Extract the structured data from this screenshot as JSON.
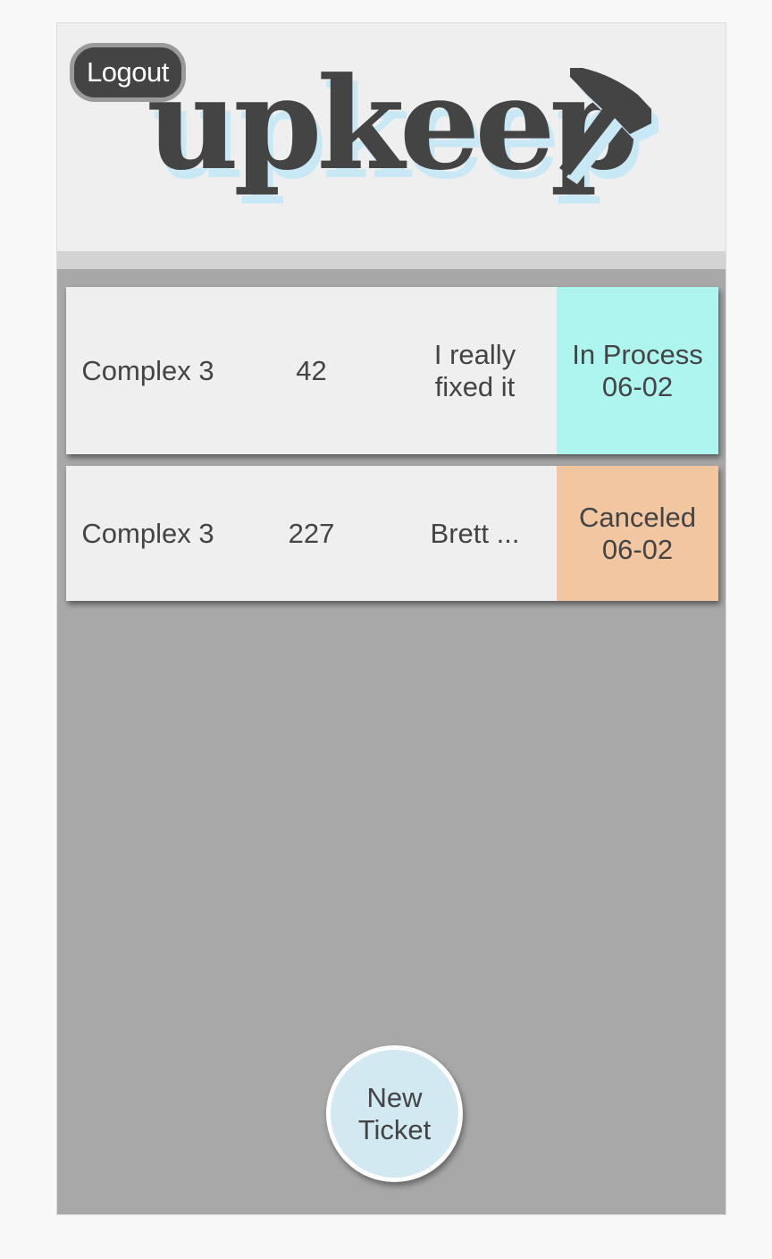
{
  "header": {
    "logout_label": "Logout",
    "logo_text": "upkeep"
  },
  "tickets": [
    {
      "location": "Complex 3",
      "unit": "42",
      "description": "I really fixed it",
      "status": "In Process",
      "date": "06-02",
      "status_color": "#adf5ee"
    },
    {
      "location": "Complex 3",
      "unit": "227",
      "description": "Brett ...",
      "status": "Canceled",
      "date": "06-02",
      "status_color": "#f2c6a0"
    }
  ],
  "actions": {
    "new_ticket_label": "New Ticket"
  },
  "colors": {
    "logo_text": "#444444",
    "logo_shadow": "#c9e8f5",
    "content_bg": "#a8a8a8",
    "header_bg": "#efefef"
  },
  "icons": {
    "logo_icon": "hammer-icon"
  }
}
